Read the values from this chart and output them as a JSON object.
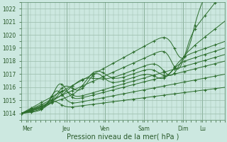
{
  "title": "",
  "xlabel": "Pression niveau de la mer( hPa )",
  "ylabel": "",
  "bg_color": "#cce8e0",
  "grid_color": "#99bbaa",
  "line_color": "#2d6e2d",
  "xlim": [
    0,
    126
  ],
  "ylim": [
    1013.5,
    1022.5
  ],
  "yticks": [
    1014,
    1015,
    1016,
    1017,
    1018,
    1019,
    1020,
    1021,
    1022
  ],
  "xtick_positions": [
    4,
    28,
    52,
    76,
    100,
    112
  ],
  "xtick_labels": [
    "Mer",
    "Jeu",
    "Ven",
    "Sam",
    "Dim",
    "Lu"
  ],
  "day_vlines": [
    4,
    28,
    52,
    76,
    100,
    112
  ],
  "num_series": 9
}
